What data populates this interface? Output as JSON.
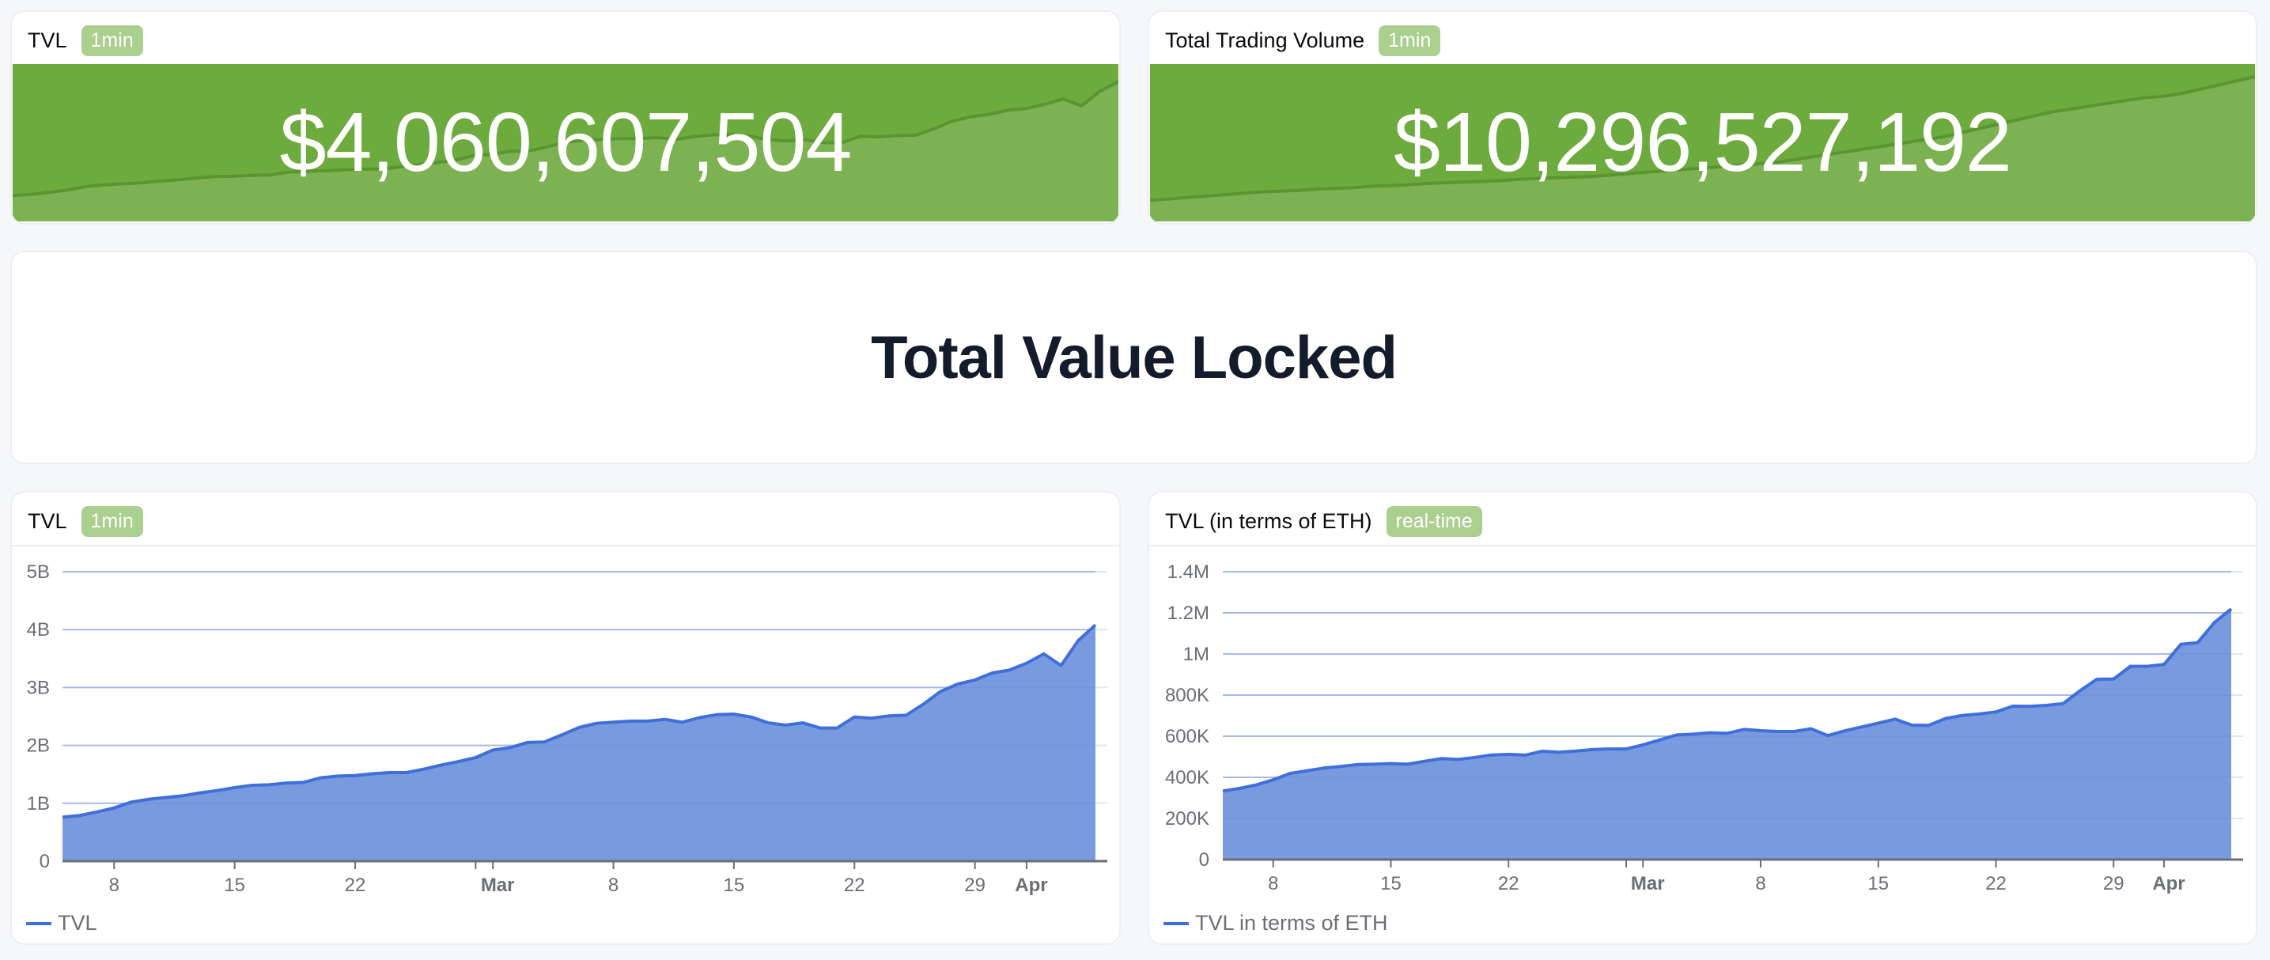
{
  "cards": {
    "tvl_stat": {
      "title": "TVL",
      "badge": "1min",
      "value": "$4,060,607,504"
    },
    "volume_stat": {
      "title": "Total Trading Volume",
      "badge": "1min",
      "value": "$10,296,527,192"
    },
    "section_heading": "Total Value Locked",
    "tvl_chart": {
      "title": "TVL",
      "badge": "1min",
      "legend": "TVL"
    },
    "eth_chart": {
      "title": "TVL (in terms of ETH)",
      "badge": "real-time",
      "legend": "TVL in terms of ETH"
    }
  },
  "colors": {
    "background": "#f6f7f9",
    "badge": "#aacf8e",
    "green_panel": "#6eab3e",
    "green_area": "#7cb251",
    "green_line": "#5a9532",
    "series_line": "#3f6fd8",
    "series_fill": "#7a9ae0",
    "grid": "#e3e6ef",
    "axis": "#6b6e75",
    "heading": "#141b2b"
  },
  "chart_data": [
    {
      "type": "area",
      "title": "TVL",
      "xlabel": "",
      "ylabel": "",
      "ylim": [
        0,
        5000000000
      ],
      "grid": true,
      "legend": "bottom-left",
      "y_ticks": [
        {
          "value": 0,
          "label": "0"
        },
        {
          "value": 1000000000,
          "label": "1B"
        },
        {
          "value": 2000000000,
          "label": "2B"
        },
        {
          "value": 3000000000,
          "label": "3B"
        },
        {
          "value": 4000000000,
          "label": "4B"
        },
        {
          "value": 5000000000,
          "label": "5B"
        }
      ],
      "x_ticks": [
        {
          "day": 3,
          "label": "8",
          "bold": false
        },
        {
          "day": 10,
          "label": "15",
          "bold": false
        },
        {
          "day": 17,
          "label": "22",
          "bold": false
        },
        {
          "day": 24,
          "label": "",
          "bold": false
        },
        {
          "day": 25,
          "label": "Mar",
          "bold": true
        },
        {
          "day": 32,
          "label": "8",
          "bold": false
        },
        {
          "day": 39,
          "label": "15",
          "bold": false
        },
        {
          "day": 46,
          "label": "22",
          "bold": false
        },
        {
          "day": 53,
          "label": "29",
          "bold": false
        },
        {
          "day": 56,
          "label": "Apr",
          "bold": true
        }
      ],
      "x_start": "Feb 5",
      "x_end": "Apr 5",
      "series": [
        {
          "name": "TVL",
          "values_billions": [
            0.76,
            0.79,
            0.85,
            0.92,
            1.02,
            1.07,
            1.1,
            1.13,
            1.18,
            1.22,
            1.27,
            1.31,
            1.32,
            1.35,
            1.36,
            1.44,
            1.47,
            1.48,
            1.51,
            1.53,
            1.53,
            1.59,
            1.66,
            1.72,
            1.79,
            1.92,
            1.96,
            2.05,
            2.06,
            2.18,
            2.31,
            2.38,
            2.4,
            2.42,
            2.42,
            2.45,
            2.4,
            2.48,
            2.53,
            2.54,
            2.49,
            2.39,
            2.35,
            2.39,
            2.3,
            2.3,
            2.49,
            2.47,
            2.51,
            2.52,
            2.71,
            2.93,
            3.06,
            3.13,
            3.25,
            3.3,
            3.42,
            3.58,
            3.38,
            3.81,
            4.08
          ]
        }
      ]
    },
    {
      "type": "area",
      "title": "TVL (in terms of ETH)",
      "xlabel": "",
      "ylabel": "",
      "ylim": [
        0,
        1400000
      ],
      "grid": true,
      "legend": "bottom-left",
      "y_ticks": [
        {
          "value": 0,
          "label": "0"
        },
        {
          "value": 200000,
          "label": "200K"
        },
        {
          "value": 400000,
          "label": "400K"
        },
        {
          "value": 600000,
          "label": "600K"
        },
        {
          "value": 800000,
          "label": "800K"
        },
        {
          "value": 1000000,
          "label": "1M"
        },
        {
          "value": 1200000,
          "label": "1.2M"
        },
        {
          "value": 1400000,
          "label": "1.4M"
        }
      ],
      "x_ticks": [
        {
          "day": 3,
          "label": "8",
          "bold": false
        },
        {
          "day": 10,
          "label": "15",
          "bold": false
        },
        {
          "day": 17,
          "label": "22",
          "bold": false
        },
        {
          "day": 24,
          "label": "",
          "bold": false
        },
        {
          "day": 25,
          "label": "Mar",
          "bold": true
        },
        {
          "day": 32,
          "label": "8",
          "bold": false
        },
        {
          "day": 39,
          "label": "15",
          "bold": false
        },
        {
          "day": 46,
          "label": "22",
          "bold": false
        },
        {
          "day": 53,
          "label": "29",
          "bold": false
        },
        {
          "day": 56,
          "label": "Apr",
          "bold": true
        }
      ],
      "x_start": "Feb 5",
      "x_end": "Apr 5",
      "series": [
        {
          "name": "TVL in terms of ETH",
          "values_thousands": [
            333,
            346,
            363,
            388,
            419,
            432,
            445,
            453,
            462,
            464,
            467,
            464,
            478,
            491,
            487,
            497,
            509,
            512,
            508,
            527,
            522,
            528,
            535,
            538,
            538,
            558,
            582,
            606,
            610,
            617,
            614,
            633,
            627,
            623,
            623,
            636,
            603,
            626,
            645,
            664,
            683,
            654,
            653,
            686,
            701,
            708,
            718,
            746,
            745,
            750,
            759,
            821,
            877,
            878,
            940,
            940,
            949,
            1047,
            1055,
            1153,
            1219
          ]
        }
      ]
    },
    {
      "type": "area",
      "title": "TVL sparkline",
      "series": [
        {
          "name": "TVL",
          "values_billions": [
            0.76,
            0.79,
            0.85,
            0.92,
            1.02,
            1.07,
            1.1,
            1.13,
            1.18,
            1.22,
            1.27,
            1.31,
            1.32,
            1.35,
            1.36,
            1.44,
            1.47,
            1.48,
            1.51,
            1.53,
            1.53,
            1.59,
            1.66,
            1.72,
            1.79,
            1.92,
            1.96,
            2.05,
            2.06,
            2.18,
            2.31,
            2.38,
            2.4,
            2.42,
            2.42,
            2.45,
            2.4,
            2.48,
            2.53,
            2.54,
            2.49,
            2.39,
            2.35,
            2.39,
            2.3,
            2.3,
            2.49,
            2.47,
            2.51,
            2.52,
            2.71,
            2.93,
            3.06,
            3.13,
            3.25,
            3.3,
            3.42,
            3.58,
            3.38,
            3.81,
            4.08
          ]
        }
      ]
    },
    {
      "type": "area",
      "title": "Trading volume sparkline",
      "series": [
        {
          "name": "Total Trading Volume",
          "values_billions": [
            1.5,
            1.6,
            1.7,
            1.8,
            1.9,
            2.0,
            2.1,
            2.15,
            2.2,
            2.3,
            2.35,
            2.4,
            2.5,
            2.55,
            2.6,
            2.7,
            2.75,
            2.8,
            2.85,
            2.9,
            3.0,
            3.05,
            3.1,
            3.15,
            3.2,
            3.3,
            3.4,
            3.5,
            3.6,
            3.7,
            3.8,
            3.9,
            4.0,
            4.1,
            4.2,
            4.4,
            4.6,
            4.8,
            5.0,
            5.2,
            5.4,
            5.6,
            5.8,
            6.0,
            6.3,
            6.6,
            6.9,
            7.2,
            7.5,
            7.8,
            8.0,
            8.2,
            8.4,
            8.6,
            8.8,
            8.9,
            9.1,
            9.4,
            9.7,
            10.0,
            10.3
          ]
        }
      ]
    }
  ]
}
